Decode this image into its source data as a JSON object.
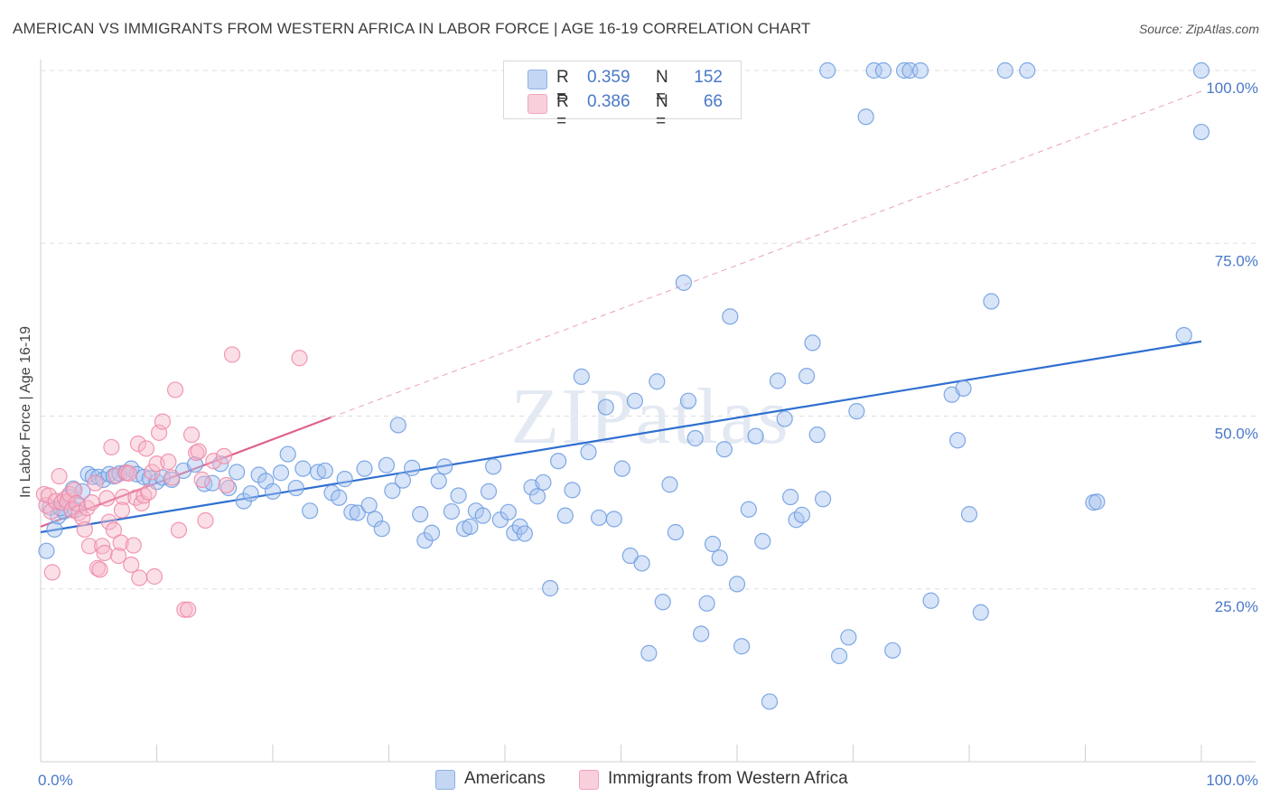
{
  "header": {
    "title": "AMERICAN VS IMMIGRANTS FROM WESTERN AFRICA IN LABOR FORCE | AGE 16-19 CORRELATION CHART",
    "source": "Source: ZipAtlas.com"
  },
  "watermark": "ZIPatlas",
  "stats_legend": [
    {
      "r_label": "R =",
      "r_value": "0.359",
      "n_label": "N =",
      "n_value": "152",
      "color": "#a9c4ef"
    },
    {
      "r_label": "R =",
      "r_value": "0.386",
      "n_label": "N =",
      "n_value": "66",
      "color": "#f6b7c9"
    }
  ],
  "bottom_legend": [
    {
      "label": "Americans",
      "color": "#a9c4ef"
    },
    {
      "label": "Immigrants from Western Africa",
      "color": "#f6b7c9"
    }
  ],
  "chart_data": {
    "type": "scatter",
    "title": "AMERICAN VS IMMIGRANTS FROM WESTERN AFRICA IN LABOR FORCE | AGE 16-19 CORRELATION CHART",
    "xlabel": "",
    "ylabel": "In Labor Force | Age 16-19",
    "xlim": [
      0,
      100
    ],
    "ylim": [
      0,
      100
    ],
    "x_tick_labels": [
      "0.0%",
      "100.0%"
    ],
    "y_tick_labels": [
      "25.0%",
      "50.0%",
      "75.0%",
      "100.0%"
    ],
    "y_ticks": [
      25,
      50,
      75,
      100
    ],
    "grid": true,
    "legend_position": "top-center",
    "series": [
      {
        "name": "Americans",
        "color": "#6a9be0",
        "fill": "#a9c4ef",
        "trend": {
          "x": [
            0,
            100
          ],
          "y": [
            33.2,
            60.8
          ]
        },
        "points": [
          [
            0.5,
            30.5
          ],
          [
            1.2,
            33.6
          ],
          [
            1.5,
            35.5
          ],
          [
            2.0,
            36.2
          ],
          [
            2.4,
            38.3
          ],
          [
            2.8,
            39.5
          ],
          [
            3.2,
            37.2
          ],
          [
            3.6,
            39.1
          ],
          [
            4.1,
            41.6
          ],
          [
            4.5,
            41.2
          ],
          [
            5.0,
            41.2
          ],
          [
            5.4,
            40.8
          ],
          [
            5.9,
            41.6
          ],
          [
            6.3,
            41.3
          ],
          [
            6.8,
            41.7
          ],
          [
            7.3,
            41.8
          ],
          [
            7.8,
            42.4
          ],
          [
            8.3,
            41.6
          ],
          [
            8.9,
            41.2
          ],
          [
            9.4,
            41.0
          ],
          [
            10.0,
            40.5
          ],
          [
            10.5,
            41.1
          ],
          [
            11.3,
            40.8
          ],
          [
            12.3,
            42.1
          ],
          [
            13.3,
            43.0
          ],
          [
            14.1,
            40.2
          ],
          [
            14.8,
            40.3
          ],
          [
            15.5,
            43.1
          ],
          [
            16.2,
            39.6
          ],
          [
            16.9,
            41.9
          ],
          [
            17.5,
            37.7
          ],
          [
            18.1,
            38.8
          ],
          [
            18.8,
            41.5
          ],
          [
            19.4,
            40.6
          ],
          [
            20.0,
            39.1
          ],
          [
            20.7,
            41.8
          ],
          [
            21.3,
            44.5
          ],
          [
            22.0,
            39.6
          ],
          [
            22.6,
            42.4
          ],
          [
            23.2,
            36.3
          ],
          [
            23.9,
            41.9
          ],
          [
            24.5,
            42.1
          ],
          [
            25.1,
            38.9
          ],
          [
            25.7,
            38.2
          ],
          [
            26.2,
            40.9
          ],
          [
            26.8,
            36.1
          ],
          [
            27.3,
            36.0
          ],
          [
            27.9,
            42.4
          ],
          [
            28.3,
            37.1
          ],
          [
            28.8,
            35.1
          ],
          [
            29.4,
            33.7
          ],
          [
            29.8,
            42.9
          ],
          [
            30.3,
            39.2
          ],
          [
            30.8,
            48.7
          ],
          [
            31.2,
            40.7
          ],
          [
            32.0,
            42.5
          ],
          [
            32.7,
            35.8
          ],
          [
            33.1,
            32.0
          ],
          [
            33.7,
            33.1
          ],
          [
            34.3,
            40.6
          ],
          [
            34.8,
            42.7
          ],
          [
            35.4,
            36.2
          ],
          [
            36.0,
            38.5
          ],
          [
            36.5,
            33.7
          ],
          [
            37.0,
            34.0
          ],
          [
            37.5,
            36.3
          ],
          [
            38.1,
            35.6
          ],
          [
            38.6,
            39.1
          ],
          [
            39.0,
            42.7
          ],
          [
            39.6,
            35.0
          ],
          [
            40.3,
            36.1
          ],
          [
            40.8,
            33.1
          ],
          [
            41.3,
            34.0
          ],
          [
            41.7,
            33.0
          ],
          [
            42.3,
            39.7
          ],
          [
            42.8,
            38.4
          ],
          [
            43.3,
            40.4
          ],
          [
            43.9,
            25.1
          ],
          [
            44.6,
            43.5
          ],
          [
            45.2,
            35.6
          ],
          [
            45.8,
            39.3
          ],
          [
            46.6,
            55.7
          ],
          [
            47.2,
            44.8
          ],
          [
            48.1,
            35.3
          ],
          [
            48.7,
            51.3
          ],
          [
            49.4,
            35.1
          ],
          [
            50.1,
            42.4
          ],
          [
            50.8,
            29.8
          ],
          [
            51.2,
            52.2
          ],
          [
            51.8,
            28.7
          ],
          [
            52.4,
            15.7
          ],
          [
            53.1,
            55.0
          ],
          [
            53.6,
            23.1
          ],
          [
            54.2,
            40.1
          ],
          [
            54.7,
            33.2
          ],
          [
            55.4,
            69.3
          ],
          [
            55.8,
            52.2
          ],
          [
            56.4,
            46.8
          ],
          [
            56.9,
            18.5
          ],
          [
            57.4,
            22.9
          ],
          [
            57.9,
            31.5
          ],
          [
            58.5,
            29.5
          ],
          [
            58.9,
            45.2
          ],
          [
            59.4,
            64.4
          ],
          [
            60.0,
            25.7
          ],
          [
            60.4,
            16.7
          ],
          [
            61.0,
            36.5
          ],
          [
            61.6,
            47.1
          ],
          [
            62.2,
            31.9
          ],
          [
            62.8,
            8.7
          ],
          [
            63.5,
            55.1
          ],
          [
            64.1,
            49.6
          ],
          [
            64.6,
            38.3
          ],
          [
            65.1,
            35.0
          ],
          [
            65.6,
            35.7
          ],
          [
            66.0,
            55.8
          ],
          [
            66.5,
            60.6
          ],
          [
            66.9,
            47.3
          ],
          [
            67.4,
            38.0
          ],
          [
            67.8,
            100.0
          ],
          [
            68.8,
            15.3
          ],
          [
            69.6,
            18.0
          ],
          [
            70.3,
            50.7
          ],
          [
            71.1,
            93.3
          ],
          [
            71.8,
            100.0
          ],
          [
            72.6,
            100.0
          ],
          [
            73.4,
            16.1
          ],
          [
            74.4,
            100.0
          ],
          [
            74.9,
            100.0
          ],
          [
            75.8,
            100.0
          ],
          [
            76.7,
            23.3
          ],
          [
            78.5,
            53.1
          ],
          [
            79.0,
            46.5
          ],
          [
            79.5,
            54.0
          ],
          [
            80.0,
            35.8
          ],
          [
            81.0,
            21.6
          ],
          [
            81.9,
            66.6
          ],
          [
            83.1,
            100.0
          ],
          [
            85.0,
            100.0
          ],
          [
            90.7,
            37.5
          ],
          [
            91.0,
            37.6
          ],
          [
            98.5,
            61.7
          ],
          [
            100.0,
            91.1
          ],
          [
            100.0,
            100.0
          ],
          [
            0.8,
            36.8
          ],
          [
            1.7,
            36.7
          ],
          [
            3.0,
            36.4
          ]
        ]
      },
      {
        "name": "Immigrants from Western Africa",
        "color": "#ee87a6",
        "fill": "#f6b7c9",
        "trend": {
          "x": [
            0,
            25
          ],
          "y": [
            34.0,
            49.8
          ]
        },
        "trend_dashed": {
          "x": [
            25,
            100
          ],
          "y": [
            49.8,
            97.0
          ]
        },
        "points": [
          [
            0.3,
            38.7
          ],
          [
            0.5,
            37.1
          ],
          [
            0.7,
            38.5
          ],
          [
            0.9,
            36.2
          ],
          [
            1.0,
            27.4
          ],
          [
            1.3,
            37.7
          ],
          [
            1.6,
            41.3
          ],
          [
            1.8,
            37.5
          ],
          [
            2.1,
            38.0
          ],
          [
            2.3,
            37.6
          ],
          [
            2.5,
            38.7
          ],
          [
            2.7,
            36.4
          ],
          [
            2.9,
            39.3
          ],
          [
            3.1,
            37.4
          ],
          [
            3.3,
            36.0
          ],
          [
            3.6,
            35.3
          ],
          [
            3.8,
            33.6
          ],
          [
            4.0,
            36.7
          ],
          [
            4.2,
            31.2
          ],
          [
            4.4,
            37.5
          ],
          [
            4.7,
            40.3
          ],
          [
            4.9,
            28.0
          ],
          [
            5.1,
            27.8
          ],
          [
            5.3,
            31.2
          ],
          [
            5.5,
            30.2
          ],
          [
            5.7,
            38.1
          ],
          [
            5.9,
            34.7
          ],
          [
            6.1,
            45.5
          ],
          [
            6.3,
            33.5
          ],
          [
            6.5,
            41.4
          ],
          [
            6.7,
            29.8
          ],
          [
            6.9,
            31.7
          ],
          [
            7.1,
            38.3
          ],
          [
            7.4,
            41.8
          ],
          [
            7.6,
            41.7
          ],
          [
            7.8,
            28.5
          ],
          [
            8.0,
            31.3
          ],
          [
            8.2,
            38.2
          ],
          [
            8.4,
            46.0
          ],
          [
            8.5,
            26.6
          ],
          [
            8.7,
            37.4
          ],
          [
            8.9,
            38.5
          ],
          [
            9.1,
            45.3
          ],
          [
            9.3,
            39.0
          ],
          [
            9.6,
            41.9
          ],
          [
            9.8,
            26.8
          ],
          [
            10.0,
            43.1
          ],
          [
            10.2,
            47.6
          ],
          [
            10.5,
            49.2
          ],
          [
            11.0,
            43.4
          ],
          [
            11.3,
            41.1
          ],
          [
            11.6,
            53.8
          ],
          [
            11.9,
            33.5
          ],
          [
            12.4,
            22.0
          ],
          [
            12.7,
            22.0
          ],
          [
            13.0,
            47.3
          ],
          [
            13.4,
            44.7
          ],
          [
            13.6,
            44.9
          ],
          [
            13.9,
            40.8
          ],
          [
            14.2,
            34.9
          ],
          [
            14.9,
            43.5
          ],
          [
            15.8,
            44.2
          ],
          [
            16.0,
            40.0
          ],
          [
            16.5,
            58.9
          ],
          [
            22.3,
            58.4
          ],
          [
            7.0,
            36.4
          ]
        ]
      }
    ]
  }
}
